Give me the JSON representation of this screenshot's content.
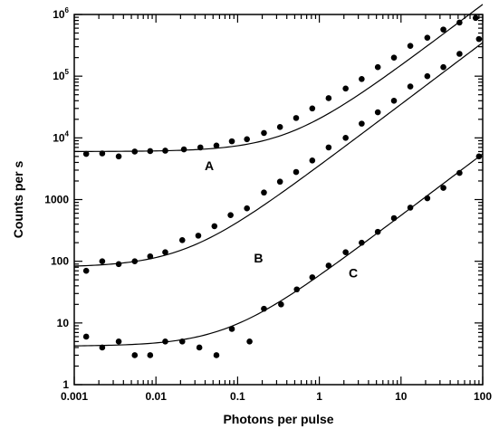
{
  "chart_data": {
    "type": "scatter",
    "title": "",
    "xlabel": "Photons per pulse",
    "ylabel": "Counts per s",
    "x_scale": "log",
    "y_scale": "log",
    "xlim": [
      0.001,
      100
    ],
    "ylim": [
      1,
      1000000
    ],
    "grid": false,
    "x_ticks": [
      {
        "value": 0.001,
        "label": "0.001"
      },
      {
        "value": 0.01,
        "label": "0.01"
      },
      {
        "value": 0.1,
        "label": "0.1"
      },
      {
        "value": 1,
        "label": "1"
      },
      {
        "value": 10,
        "label": "10"
      },
      {
        "value": 100,
        "label": "100"
      }
    ],
    "y_ticks": [
      {
        "value": 1,
        "label": "1",
        "sup": ""
      },
      {
        "value": 10,
        "label": "10",
        "sup": ""
      },
      {
        "value": 100,
        "label": "100",
        "sup": ""
      },
      {
        "value": 1000,
        "label": "1000",
        "sup": ""
      },
      {
        "value": 10000,
        "label": "10",
        "sup": "4"
      },
      {
        "value": 100000,
        "label": "10",
        "sup": "5"
      },
      {
        "value": 1000000,
        "label": "10",
        "sup": "6"
      }
    ],
    "series": [
      {
        "name": "A",
        "label_pos": {
          "x": 0.045,
          "y": 3000
        },
        "fit": {
          "background": 6000,
          "gain": 14500
        },
        "points": [
          [
            0.0014,
            5500
          ],
          [
            0.0022,
            5600
          ],
          [
            0.0035,
            5000
          ],
          [
            0.0055,
            6000
          ],
          [
            0.0085,
            6100
          ],
          [
            0.013,
            6200
          ],
          [
            0.022,
            6500
          ],
          [
            0.035,
            7000
          ],
          [
            0.055,
            7500
          ],
          [
            0.085,
            8800
          ],
          [
            0.13,
            9500
          ],
          [
            0.21,
            12000
          ],
          [
            0.33,
            15000
          ],
          [
            0.52,
            21000
          ],
          [
            0.82,
            30000
          ],
          [
            1.3,
            44000
          ],
          [
            2.1,
            63000
          ],
          [
            3.3,
            90000
          ],
          [
            5.2,
            140000
          ],
          [
            8.2,
            200000
          ],
          [
            13,
            310000
          ],
          [
            21,
            420000
          ],
          [
            33,
            570000
          ],
          [
            52,
            740000
          ],
          [
            82,
            880000
          ]
        ]
      },
      {
        "name": "B",
        "label_pos": {
          "x": 0.18,
          "y": 95
        },
        "fit": {
          "background": 80,
          "gain": 3500
        },
        "points": [
          [
            0.0014,
            70
          ],
          [
            0.0022,
            100
          ],
          [
            0.0035,
            90
          ],
          [
            0.0055,
            100
          ],
          [
            0.0085,
            120
          ],
          [
            0.013,
            140
          ],
          [
            0.021,
            220
          ],
          [
            0.033,
            260
          ],
          [
            0.052,
            370
          ],
          [
            0.082,
            560
          ],
          [
            0.13,
            720
          ],
          [
            0.21,
            1300
          ],
          [
            0.33,
            1950
          ],
          [
            0.52,
            2800
          ],
          [
            0.82,
            4300
          ],
          [
            1.3,
            7000
          ],
          [
            2.1,
            10000
          ],
          [
            3.3,
            17000
          ],
          [
            5.2,
            26000
          ],
          [
            8.2,
            40000
          ],
          [
            13,
            68000
          ],
          [
            21,
            100000
          ],
          [
            33,
            140000
          ],
          [
            52,
            230000
          ],
          [
            90,
            400000
          ]
        ]
      },
      {
        "name": "C",
        "label_pos": {
          "x": 2.6,
          "y": 55
        },
        "fit": {
          "background": 4.2,
          "gain": 55
        },
        "points": [
          [
            0.0014,
            6
          ],
          [
            0.0022,
            4
          ],
          [
            0.0035,
            5
          ],
          [
            0.0055,
            3
          ],
          [
            0.0085,
            3
          ],
          [
            0.013,
            5
          ],
          [
            0.021,
            5
          ],
          [
            0.034,
            4
          ],
          [
            0.055,
            3
          ],
          [
            0.085,
            8
          ],
          [
            0.14,
            5
          ],
          [
            0.21,
            17
          ],
          [
            0.34,
            20
          ],
          [
            0.53,
            35
          ],
          [
            0.82,
            55
          ],
          [
            1.3,
            85
          ],
          [
            2.1,
            140
          ],
          [
            3.3,
            200
          ],
          [
            5.2,
            300
          ],
          [
            8.2,
            500
          ],
          [
            13,
            740
          ],
          [
            21,
            1050
          ],
          [
            33,
            1550
          ],
          [
            52,
            2700
          ],
          [
            90,
            5000
          ]
        ]
      }
    ]
  }
}
